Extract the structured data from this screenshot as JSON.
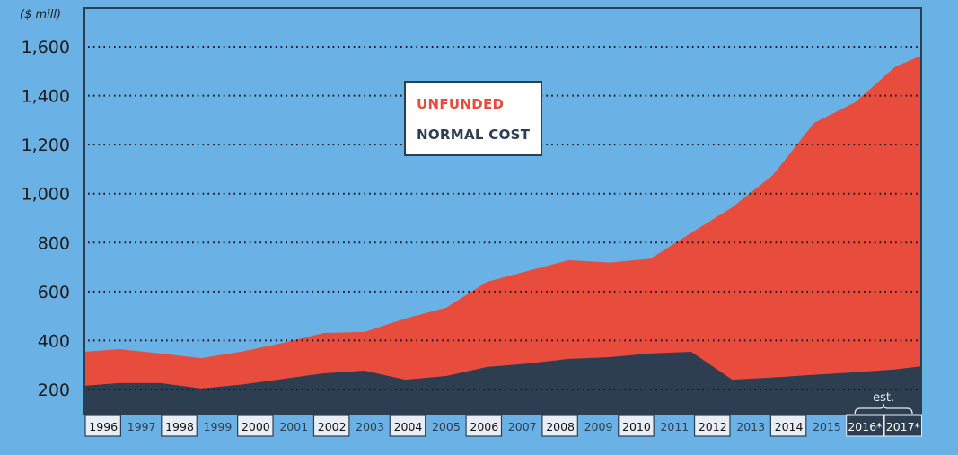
{
  "chart_data": {
    "type": "area",
    "stacked": true,
    "title": "",
    "ylabel": "($ mill)",
    "xlabel": "",
    "ylim": [
      97,
      1660
    ],
    "yticks": [
      200,
      400,
      600,
      800,
      1000,
      1200,
      1400,
      1600
    ],
    "ytick_labels": [
      "200",
      "400",
      "600",
      "800",
      "1,000",
      "1,200",
      "1,400",
      "1,600"
    ],
    "grid": "horizontal dotted",
    "categories": [
      "1996",
      "1997",
      "1998",
      "1999",
      "2000",
      "2001",
      "2002",
      "2003",
      "2004",
      "2005",
      "2006",
      "2007",
      "2008",
      "2009",
      "2010",
      "2011",
      "2012",
      "2013",
      "2014",
      "2015",
      "2016*",
      "2017*"
    ],
    "boxed_categories": [
      "1996",
      "1998",
      "2000",
      "2002",
      "2004",
      "2006",
      "2008",
      "2010",
      "2012",
      "2014"
    ],
    "estimated_categories": [
      "2016*",
      "2017*"
    ],
    "estimate_annotation": "est.",
    "series": [
      {
        "name": "NORMAL COST",
        "color": "#2d3e50",
        "values": [
          215,
          226,
          226,
          204,
          220,
          243,
          266,
          277,
          240,
          255,
          292,
          306,
          325,
          332,
          347,
          354,
          240,
          249,
          260,
          270,
          282,
          295
        ]
      },
      {
        "name": "UNFUNDED",
        "color": "#e84c3d",
        "total_values": [
          354,
          365,
          347,
          328,
          355,
          390,
          431,
          435,
          490,
          534,
          640,
          684,
          728,
          718,
          734,
          840,
          944,
          1076,
          1288,
          1372,
          1519,
          1563
        ]
      }
    ],
    "legend": {
      "position": "top-center",
      "entries": [
        {
          "label": "UNFUNDED",
          "color": "#e84c3d"
        },
        {
          "label": "NORMAL COST",
          "color": "#2d3e50"
        }
      ]
    }
  },
  "colors": {
    "background": "#6ab2e5",
    "frame": "#2d3e50",
    "label_box": "#e9eef6"
  }
}
